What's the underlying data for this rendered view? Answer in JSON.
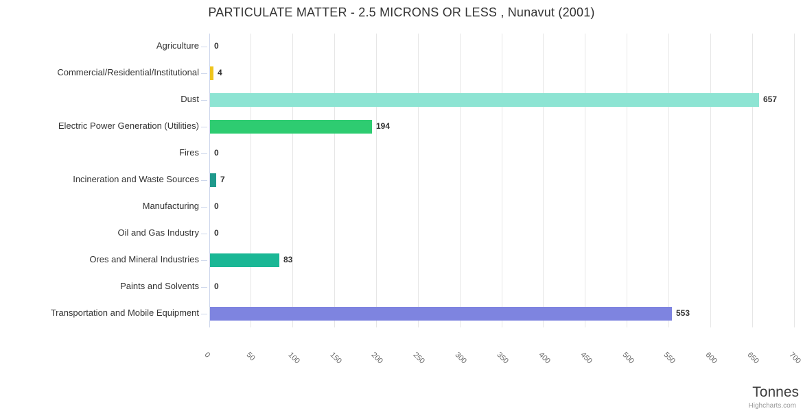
{
  "chart_data": {
    "type": "bar",
    "orientation": "horizontal",
    "title": "PARTICULATE MATTER - 2.5 MICRONS OR LESS , Nunavut (2001)",
    "categories": [
      "Agriculture",
      "Commercial/Residential/Institutional",
      "Dust",
      "Electric Power Generation (Utilities)",
      "Fires",
      "Incineration and Waste Sources",
      "Manufacturing",
      "Oil and Gas Industry",
      "Ores and Mineral Industries",
      "Paints and Solvents",
      "Transportation and Mobile Equipment"
    ],
    "values": [
      0,
      4,
      657,
      194,
      0,
      7,
      0,
      0,
      83,
      0,
      553
    ],
    "data_labels": [
      "0",
      "4",
      "657",
      "194",
      "0",
      "7",
      "0",
      "0",
      "83",
      "0",
      "553"
    ],
    "bar_colors": [
      null,
      "#eec41d",
      "#8de4d3",
      "#2ecc71",
      null,
      "#1f998c",
      null,
      null,
      "#1ab795",
      null,
      "#7e84e0"
    ],
    "value_axis": {
      "min": 0,
      "max": 700,
      "tick_interval": 50,
      "tick_labels": [
        "0",
        "50",
        "100",
        "150",
        "200",
        "250",
        "300",
        "350",
        "400",
        "450",
        "500",
        "550",
        "600",
        "650",
        "700"
      ],
      "title": "Tonnes"
    },
    "grid": true,
    "legend": false
  },
  "credits": {
    "label": "Highcharts.com"
  },
  "colors": {
    "background": "#ffffff",
    "grid": "#e6e6e6",
    "axis_line": "#ccd6eb",
    "title_text": "#333333",
    "category_text": "#333333",
    "tick_text": "#666666",
    "data_label_text": "#333333",
    "axis_title_text": "#3c3c3c",
    "credits_text": "#999999"
  }
}
